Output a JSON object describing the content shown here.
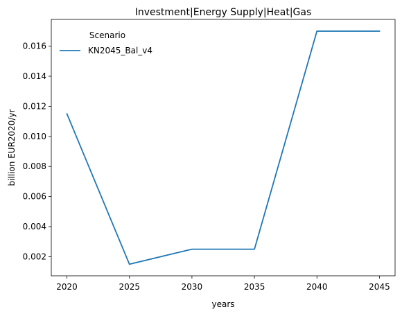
{
  "chart_data": {
    "type": "line",
    "title": "Investment|Energy Supply|Heat|Gas",
    "xlabel": "years",
    "ylabel": "billion EUR2020/yr",
    "x": [
      2020,
      2025,
      2030,
      2035,
      2040,
      2045
    ],
    "series": [
      {
        "name": "KN2045_Bal_v4",
        "values": [
          0.0115,
          0.0015,
          0.0025,
          0.0025,
          0.017,
          0.017
        ],
        "color": "#1f77b4"
      }
    ],
    "xticks": [
      "2020",
      "2025",
      "2030",
      "2035",
      "2040",
      "2045"
    ],
    "yticks": [
      "0.002",
      "0.004",
      "0.006",
      "0.008",
      "0.010",
      "0.012",
      "0.014",
      "0.016"
    ],
    "xlim": [
      2018.75,
      2046.25
    ],
    "ylim": [
      0.00073,
      0.01778
    ],
    "legend": {
      "title": "Scenario",
      "placement": "top-left"
    },
    "grid": false
  }
}
